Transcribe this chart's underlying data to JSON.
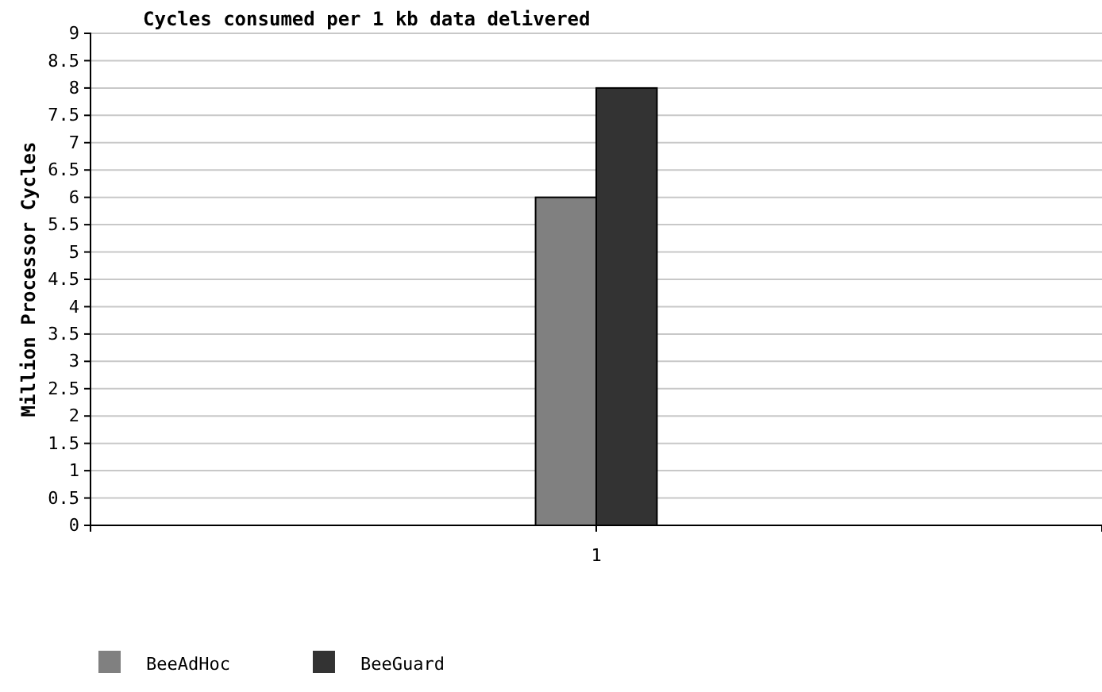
{
  "chart_data": {
    "type": "bar",
    "title": "Cycles consumed per 1 kb data delivered",
    "ylabel": "Million Processor Cycles",
    "categories": [
      "1"
    ],
    "series": [
      {
        "name": "BeeAdHoc",
        "color": "#808080",
        "values": [
          6
        ]
      },
      {
        "name": "BeeGuard",
        "color": "#333333",
        "values": [
          8
        ]
      }
    ],
    "ylim": [
      0,
      9
    ],
    "yticks": [
      0,
      0.5,
      1,
      1.5,
      2,
      2.5,
      3,
      3.5,
      4,
      4.5,
      5,
      5.5,
      6,
      6.5,
      7,
      7.5,
      8,
      8.5,
      9
    ],
    "grid": "y",
    "legend": "bottom left"
  }
}
